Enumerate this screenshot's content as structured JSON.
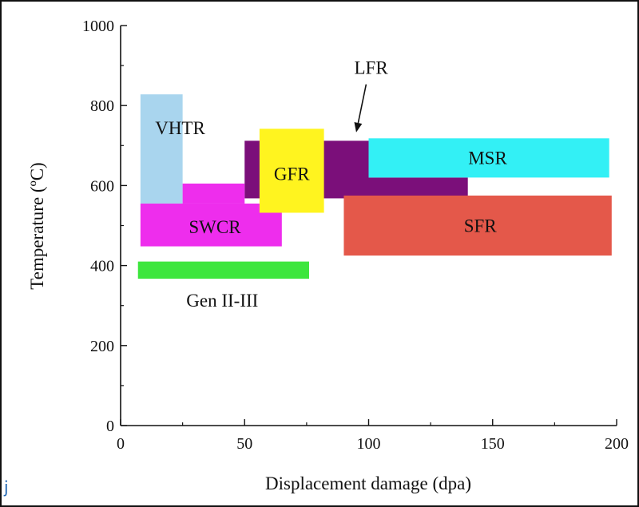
{
  "chart_data": {
    "type": "range-box",
    "title": "",
    "xlabel": "Displacement damage (dpa)",
    "ylabel": "Temperature (ºC)",
    "xlim": [
      0,
      200
    ],
    "ylim": [
      0,
      1000
    ],
    "xticks": [
      "0",
      "50",
      "100",
      "150",
      "200"
    ],
    "yticks": [
      "0",
      "200",
      "400",
      "600",
      "800",
      "1000"
    ],
    "grid": false,
    "regions": [
      {
        "name": "VHTR",
        "color": "#a9d5ee",
        "boxes": [
          {
            "x": [
              8,
              25
            ],
            "y": [
              555,
              828
            ]
          }
        ]
      },
      {
        "name": "LFR",
        "color": "#7b0f7a",
        "boxes": [
          {
            "x": [
              50,
              100
            ],
            "y": [
              568,
              712
            ]
          },
          {
            "x": [
              100,
              140
            ],
            "y": [
              568,
              620
            ]
          }
        ]
      },
      {
        "name": "SWCR",
        "color": "#ee2ded",
        "boxes": [
          {
            "x": [
              8,
              65
            ],
            "y": [
              448,
              555
            ]
          },
          {
            "x": [
              25,
              50
            ],
            "y": [
              555,
              605
            ]
          }
        ]
      },
      {
        "name": "GFR",
        "color": "#fff41f",
        "boxes": [
          {
            "x": [
              56,
              82
            ],
            "y": [
              532,
              742
            ]
          }
        ]
      },
      {
        "name": "MSR",
        "color": "#33f0f5",
        "boxes": [
          {
            "x": [
              100,
              197
            ],
            "y": [
              620,
              718
            ]
          }
        ]
      },
      {
        "name": "SFR",
        "color": "#e4584a",
        "boxes": [
          {
            "x": [
              90,
              198
            ],
            "y": [
              425,
              575
            ]
          }
        ]
      },
      {
        "name": "Gen II-III",
        "color": "#3de63d",
        "boxes": [
          {
            "x": [
              7,
              76
            ],
            "y": [
              367,
              410
            ]
          }
        ]
      }
    ],
    "labels": [
      {
        "text": "VHTR",
        "x": 24,
        "y": 745
      },
      {
        "text": "SWCR",
        "x": 38,
        "y": 497
      },
      {
        "text": "GFR",
        "x": 69,
        "y": 630
      },
      {
        "text": "MSR",
        "x": 148,
        "y": 670
      },
      {
        "text": "SFR",
        "x": 145,
        "y": 500
      },
      {
        "text": "Gen II-III",
        "x": 41,
        "y": 313
      },
      {
        "text": "LFR",
        "x": 101,
        "y": 895
      }
    ],
    "arrow": {
      "label": "LFR",
      "from": [
        99,
        853
      ],
      "to": [
        95,
        733
      ]
    }
  },
  "side_glyph": "j"
}
